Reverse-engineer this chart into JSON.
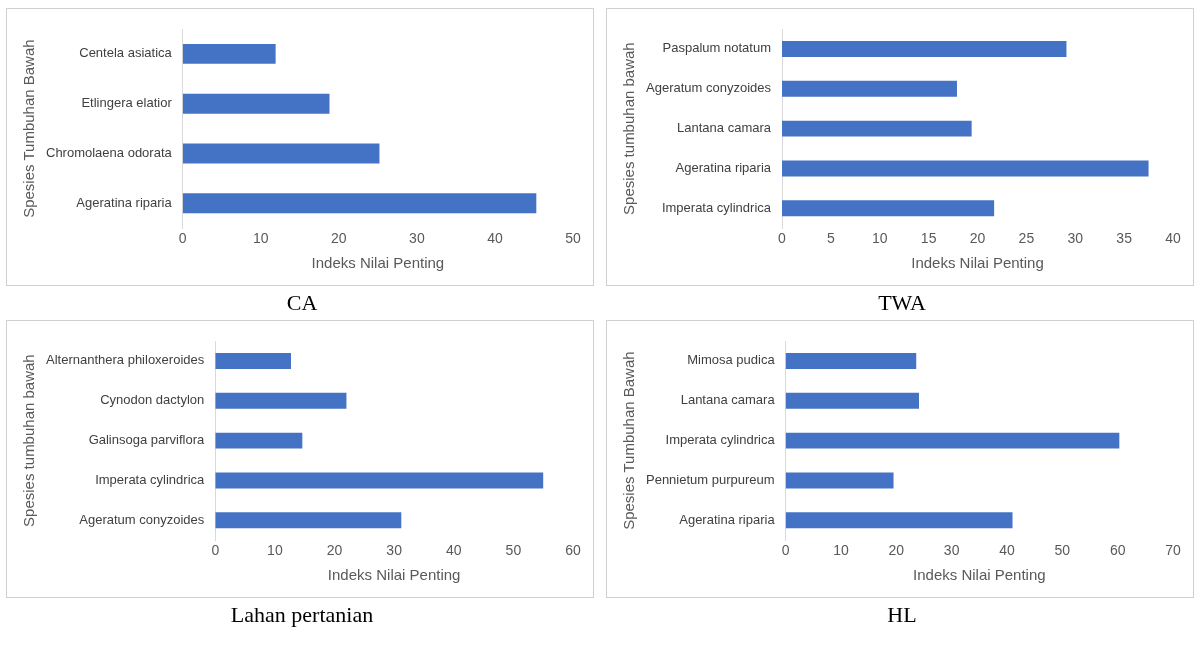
{
  "chart_data": [
    {
      "type": "bar",
      "orientation": "horizontal",
      "title": "CA",
      "xlabel": "Indeks Nilai Penting",
      "ylabel": "Spesies Tumbuhan Bawah",
      "categories": [
        "Centela asiatica",
        "Etlingera elatior",
        "Chromolaena odorata",
        "Ageratina riparia"
      ],
      "values": [
        11.9,
        18.8,
        25.2,
        45.3
      ],
      "color": "#4472c4",
      "xlim": [
        0,
        50
      ],
      "xticks": [
        0,
        10,
        20,
        30,
        40,
        50
      ]
    },
    {
      "type": "bar",
      "orientation": "horizontal",
      "title": "TWA",
      "xlabel": "Indeks Nilai Penting",
      "ylabel": "Spesies tumbuhan bawah",
      "categories": [
        "Paspalum notatum",
        "Ageratum conyzoides",
        "Lantana camara",
        "Ageratina riparia",
        "Imperata cylindrica"
      ],
      "values": [
        29.1,
        17.9,
        19.4,
        37.5,
        21.7
      ],
      "color": "#4472c4",
      "xlim": [
        0,
        40
      ],
      "xticks": [
        0,
        5,
        10,
        15,
        20,
        25,
        30,
        35,
        40
      ]
    },
    {
      "type": "bar",
      "orientation": "horizontal",
      "title": "Lahan pertanian",
      "xlabel": "Indeks Nilai Penting",
      "ylabel": "Spesies tumbuhan bawah",
      "categories": [
        "Alternanthera philoxeroides",
        "Cynodon dactylon",
        "Galinsoga parviflora",
        "Imperata cylindrica",
        "Ageratum conyzoides"
      ],
      "values": [
        12.7,
        22.0,
        14.6,
        55.0,
        31.2
      ],
      "color": "#4472c4",
      "xlim": [
        0,
        60
      ],
      "xticks": [
        0,
        10,
        20,
        30,
        40,
        50,
        60
      ]
    },
    {
      "type": "bar",
      "orientation": "horizontal",
      "title": "HL",
      "xlabel": "Indeks Nilai Penting",
      "ylabel": "Spesies Tumbuhan Bawah",
      "categories": [
        "Mimosa pudica",
        "Lantana camara",
        "Imperata cylindrica",
        "Pennietum purpureum",
        "Ageratina riparia"
      ],
      "values": [
        23.6,
        24.1,
        60.3,
        19.5,
        41.0
      ],
      "color": "#4472c4",
      "xlim": [
        0,
        70
      ],
      "xticks": [
        0,
        10,
        20,
        30,
        40,
        50,
        60,
        70
      ]
    }
  ]
}
